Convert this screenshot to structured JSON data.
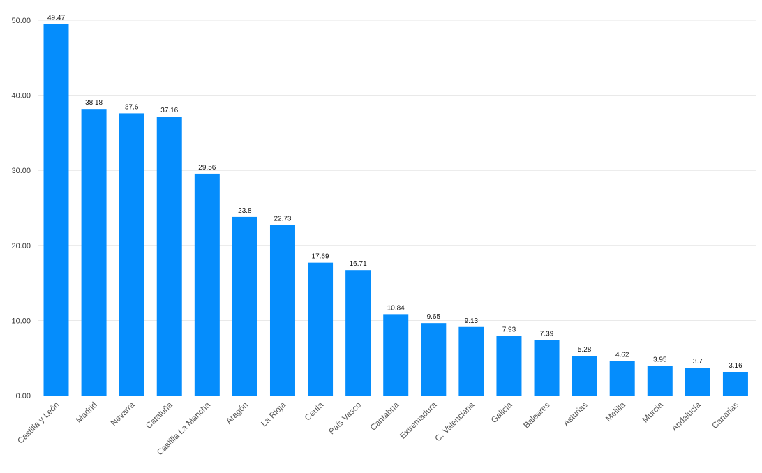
{
  "chart_data": {
    "type": "bar",
    "categories": [
      "Castilla y León",
      "Madrid",
      "Navarra",
      "Cataluña",
      "Castilla La Mancha",
      "Aragón",
      "La Rioja",
      "Ceuta",
      "País Vasco",
      "Cantabria",
      "Extremadura",
      "C. Valenciana",
      "Galicia",
      "Baleares",
      "Asturias",
      "Melilla",
      "Murcia",
      "Andalucía",
      "Canarias"
    ],
    "values": [
      49.47,
      38.18,
      37.6,
      37.16,
      29.56,
      23.8,
      22.73,
      17.69,
      16.71,
      10.84,
      9.65,
      9.13,
      7.93,
      7.39,
      5.28,
      4.62,
      3.95,
      3.7,
      3.16
    ],
    "value_labels": [
      "49.47",
      "38.18",
      "37.6",
      "37.16",
      "29.56",
      "23.8",
      "22.73",
      "17.69",
      "16.71",
      "10.84",
      "9.65",
      "9.13",
      "7.93",
      "7.39",
      "5.28",
      "4.62",
      "3.95",
      "3.7",
      "3.16"
    ],
    "yticks": [
      "0.00",
      "10.00",
      "20.00",
      "30.00",
      "40.00",
      "50.00"
    ],
    "ylim": [
      0,
      50
    ],
    "title": "",
    "xlabel": "",
    "ylabel": "",
    "grid": true,
    "bar_color": "#058dfc",
    "grid_color": "#e6e6e6"
  }
}
